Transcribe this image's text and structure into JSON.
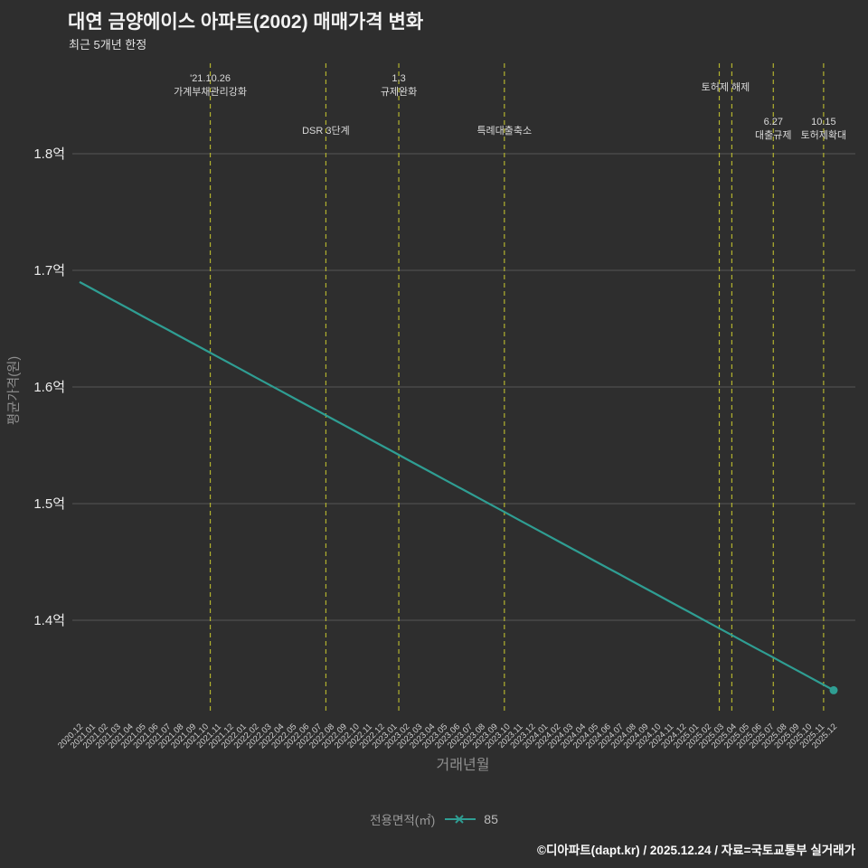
{
  "page": {
    "bg": "#2e2e2e"
  },
  "footer": {
    "credit": "©디아파트(dapt.kr) / 2025.12.24 / 자료=국토교통부 실거래가"
  },
  "chart_data": {
    "type": "line",
    "title": "대연 금양에이스 아파트(2002) 매매가격 변화",
    "subtitle": "최근 5개년 한정",
    "xlabel": "거래년월",
    "ylabel": "평균가격(원)",
    "ylim": [
      1.32,
      1.88
    ],
    "grid": true,
    "legend_position": "bottom-center",
    "colors": {
      "grid": "#565656",
      "tick_label": "#ececec",
      "tick_label_small": "#cfcfcf",
      "annotation": "#b2b22e",
      "annotation_text": "#dadada",
      "axis_title": "#8f8f8f"
    },
    "y_ticks": [
      {
        "label": "1.8억",
        "value": 1.8
      },
      {
        "label": "1.7억",
        "value": 1.7
      },
      {
        "label": "1.6억",
        "value": 1.6
      },
      {
        "label": "1.5억",
        "value": 1.5
      },
      {
        "label": "1.4억",
        "value": 1.4
      }
    ],
    "categories": [
      "2020.12",
      "2021.01",
      "2021.02",
      "2021.03",
      "2021.04",
      "2021.05",
      "2021.06",
      "2021.07",
      "2021.08",
      "2021.09",
      "2021.10",
      "2021.11",
      "2021.12",
      "2022.01",
      "2022.02",
      "2022.03",
      "2022.04",
      "2022.05",
      "2022.06",
      "2022.07",
      "2022.08",
      "2022.09",
      "2022.10",
      "2022.11",
      "2022.12",
      "2023.01",
      "2023.02",
      "2023.03",
      "2023.04",
      "2023.05",
      "2023.06",
      "2023.07",
      "2023.08",
      "2023.09",
      "2023.10",
      "2023.11",
      "2023.12",
      "2024.01",
      "2024.02",
      "2024.03",
      "2024.04",
      "2024.05",
      "2024.06",
      "2024.07",
      "2024.08",
      "2024.09",
      "2024.10",
      "2024.11",
      "2024.12",
      "2025.01",
      "2025.02",
      "2025.03",
      "2025.04",
      "2025.05",
      "2025.06",
      "2025.07",
      "2025.08",
      "2025.09",
      "2025.10",
      "2025.11",
      "2025.12"
    ],
    "series": [
      {
        "name": "85",
        "color": "#2f9e93",
        "values": [
          1.69,
          1.6842,
          1.6783,
          1.6725,
          1.6667,
          1.6608,
          1.655,
          1.6492,
          1.6433,
          1.6375,
          1.6317,
          1.6258,
          1.62,
          1.6142,
          1.6083,
          1.6025,
          1.5967,
          1.5908,
          1.585,
          1.5792,
          1.5733,
          1.5675,
          1.5617,
          1.5558,
          1.55,
          1.5442,
          1.5383,
          1.5325,
          1.5267,
          1.5208,
          1.515,
          1.5092,
          1.5033,
          1.4975,
          1.4917,
          1.4858,
          1.48,
          1.4742,
          1.4683,
          1.4625,
          1.4567,
          1.4508,
          1.445,
          1.4392,
          1.4333,
          1.4275,
          1.4217,
          1.4158,
          1.41,
          1.4042,
          1.3983,
          1.3925,
          1.3867,
          1.3808,
          1.375,
          1.3692,
          1.3633,
          1.3575,
          1.3517,
          1.3458,
          1.34
        ]
      }
    ],
    "annotations": [
      {
        "lines": [
          10.4
        ],
        "label_x": 10.4,
        "text": [
          "'21.10.26",
          "가계부채관리강화"
        ],
        "text_top": 90
      },
      {
        "lines": [
          19.6
        ],
        "label_x": 19.6,
        "text": [
          "DSR 3단계"
        ],
        "text_top": 148
      },
      {
        "lines": [
          25.4
        ],
        "label_x": 25.4,
        "text": [
          "1.3",
          "규제완화"
        ],
        "text_top": 90
      },
      {
        "lines": [
          33.8
        ],
        "label_x": 33.8,
        "text": [
          "특례대출축소"
        ],
        "text_top": 148
      },
      {
        "lines": [
          50.9,
          51.9
        ],
        "label_x": 51.4,
        "text": [
          "토허제 해제"
        ],
        "text_top": 100
      },
      {
        "lines": [
          55.2
        ],
        "label_x": 55.2,
        "text": [
          "6.27",
          "대출규제"
        ],
        "text_top": 138
      },
      {
        "lines": [
          59.2
        ],
        "label_x": 59.2,
        "text": [
          "10.15",
          "토허제확대"
        ],
        "text_top": 138
      }
    ],
    "legend": {
      "title": "전용면적(㎡)",
      "items": [
        {
          "label": "85"
        }
      ]
    }
  }
}
